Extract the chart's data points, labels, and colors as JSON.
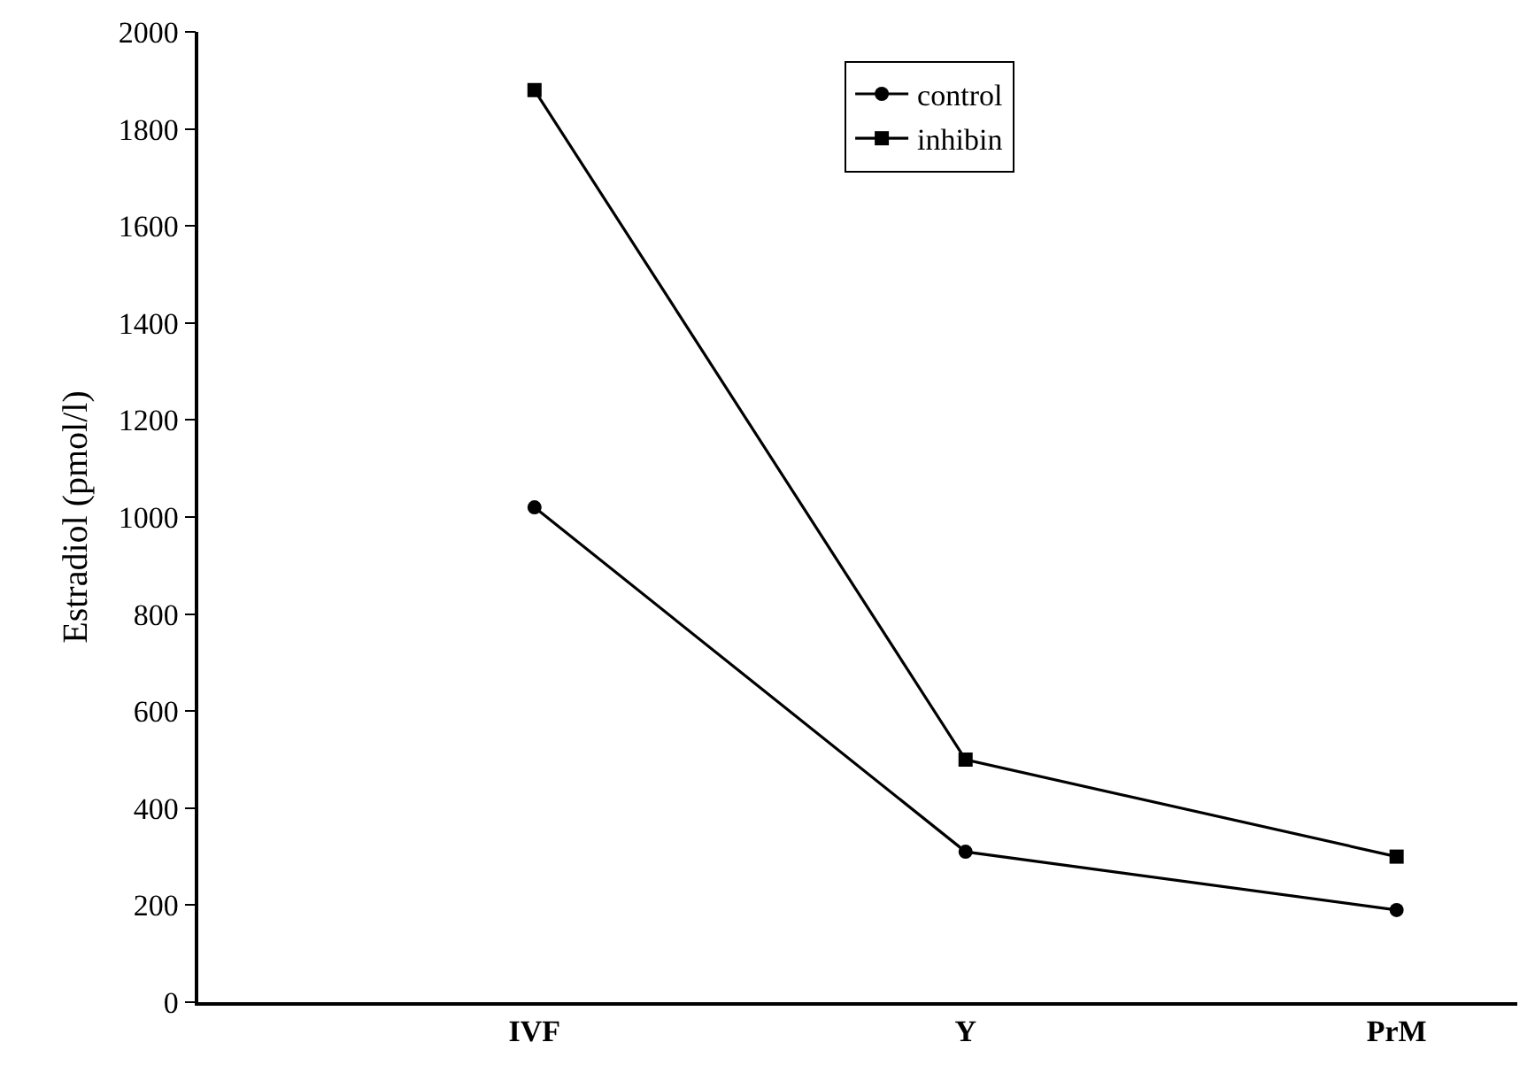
{
  "chart_data": {
    "type": "line",
    "ylabel": "Estradiol (pmol/l)",
    "categories": [
      "IVF",
      "Y",
      "PrM"
    ],
    "series": [
      {
        "name": "control",
        "color": "#000000",
        "marker": "circle",
        "values": [
          1020,
          310,
          190
        ]
      },
      {
        "name": "inhibin",
        "color": "#000000",
        "marker": "square",
        "values": [
          1880,
          500,
          300
        ]
      }
    ],
    "ylim": [
      0,
      2000
    ],
    "yticks": [
      0,
      200,
      400,
      600,
      800,
      1000,
      1200,
      1400,
      1600,
      1800,
      2000
    ],
    "grid": false,
    "legend": "top right",
    "line_style": "solid"
  }
}
